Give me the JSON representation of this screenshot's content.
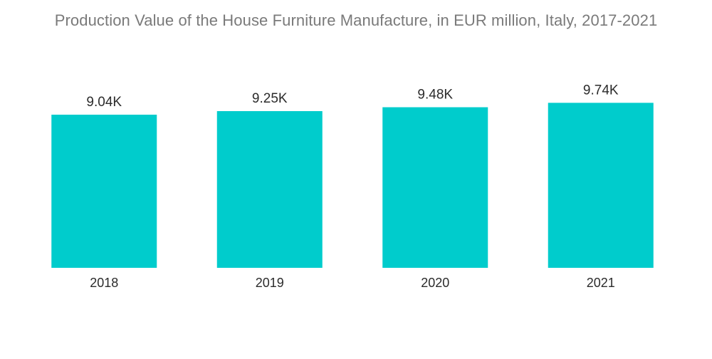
{
  "chart_data": {
    "type": "bar",
    "title": "Production Value of the House Furniture Manufacture, in EUR million, Italy, 2017-2021",
    "categories": [
      "2018",
      "2019",
      "2020",
      "2021"
    ],
    "values": [
      9040,
      9250,
      9480,
      9740
    ],
    "data_labels": [
      "9.04K",
      "9.25K",
      "9.48K",
      "9.74K"
    ],
    "xlabel": "",
    "ylabel": "",
    "grid": false,
    "legend": "none",
    "bar_color": "#00cccc"
  }
}
